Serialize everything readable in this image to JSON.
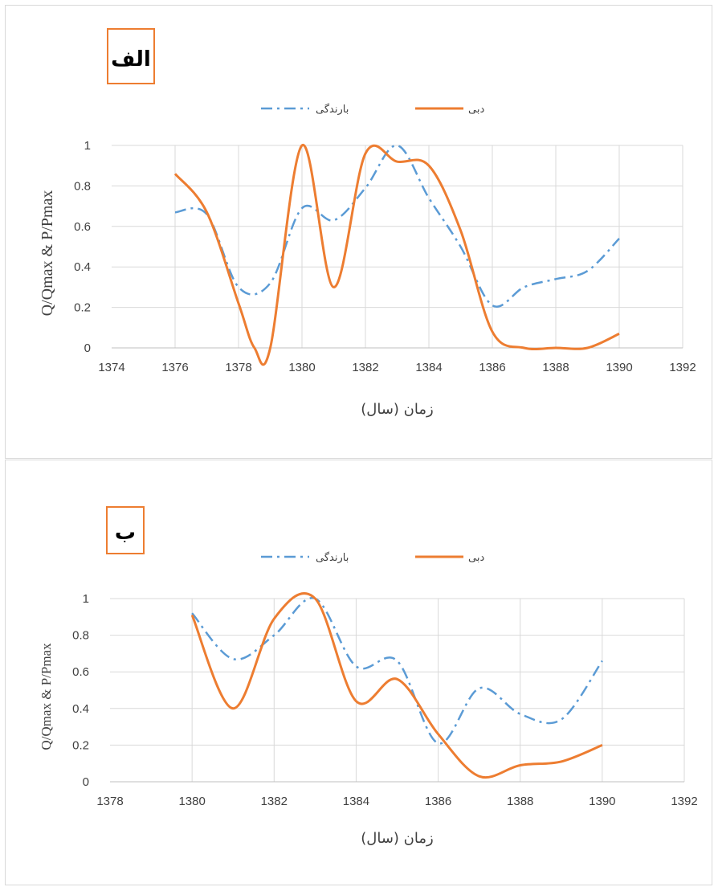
{
  "chart_data": [
    {
      "type": "line",
      "panel_label": "الف",
      "xlabel": "زمان (سال)",
      "ylabel": "Q/Qmax & P/Pmax",
      "xlim": [
        1374,
        1392
      ],
      "ylim": [
        0,
        1
      ],
      "x_ticks": [
        1374,
        1376,
        1378,
        1380,
        1382,
        1384,
        1386,
        1388,
        1390,
        1392
      ],
      "y_ticks": [
        0,
        0.2,
        0.4,
        0.6,
        0.8,
        1
      ],
      "grid": true,
      "legend_position": "top-center",
      "series": [
        {
          "name": "بارندگی",
          "style": "dash-dot",
          "color": "#5B9BD5",
          "x": [
            1376,
            1377,
            1378,
            1379,
            1380,
            1381,
            1382,
            1383,
            1384,
            1385,
            1386,
            1387,
            1388,
            1389,
            1390
          ],
          "y": [
            0.67,
            0.66,
            0.3,
            0.32,
            0.69,
            0.63,
            0.79,
            1.0,
            0.74,
            0.5,
            0.21,
            0.3,
            0.34,
            0.38,
            0.54
          ]
        },
        {
          "name": "دبی",
          "style": "solid",
          "color": "#ED7D31",
          "x": [
            1376,
            1377,
            1378,
            1378.5,
            1379,
            1380,
            1381,
            1382,
            1383,
            1384,
            1385,
            1386,
            1387,
            1388,
            1389,
            1390
          ],
          "y": [
            0.86,
            0.67,
            0.22,
            0.0,
            0.0,
            1.0,
            0.3,
            0.96,
            0.92,
            0.9,
            0.58,
            0.08,
            0.0,
            0.0,
            0.0,
            0.07
          ]
        }
      ]
    },
    {
      "type": "line",
      "panel_label": "ب",
      "xlabel": "زمان (سال)",
      "ylabel": "Q/Qmax & P/Pmax",
      "xlim": [
        1378,
        1392
      ],
      "ylim": [
        0,
        1
      ],
      "x_ticks": [
        1378,
        1380,
        1382,
        1384,
        1386,
        1388,
        1390,
        1392
      ],
      "y_ticks": [
        0,
        0.2,
        0.4,
        0.6,
        0.8,
        1
      ],
      "grid": true,
      "legend_position": "top-center",
      "series": [
        {
          "name": "بارندگی",
          "style": "dash-dot",
          "color": "#5B9BD5",
          "x": [
            1380,
            1381,
            1382,
            1383,
            1384,
            1385,
            1386,
            1387,
            1388,
            1389,
            1390
          ],
          "y": [
            0.92,
            0.67,
            0.8,
            1.0,
            0.63,
            0.66,
            0.21,
            0.51,
            0.37,
            0.34,
            0.66
          ]
        },
        {
          "name": "دبی",
          "style": "solid",
          "color": "#ED7D31",
          "x": [
            1380,
            1381,
            1382,
            1383,
            1384,
            1385,
            1386,
            1387,
            1388,
            1389,
            1390
          ],
          "y": [
            0.91,
            0.4,
            0.89,
            1.0,
            0.44,
            0.56,
            0.26,
            0.03,
            0.09,
            0.11,
            0.2
          ]
        }
      ]
    }
  ],
  "colors": {
    "badge_border": "#ED7D31",
    "grid": "#D9D9D9",
    "axis": "#BFBFBF"
  }
}
